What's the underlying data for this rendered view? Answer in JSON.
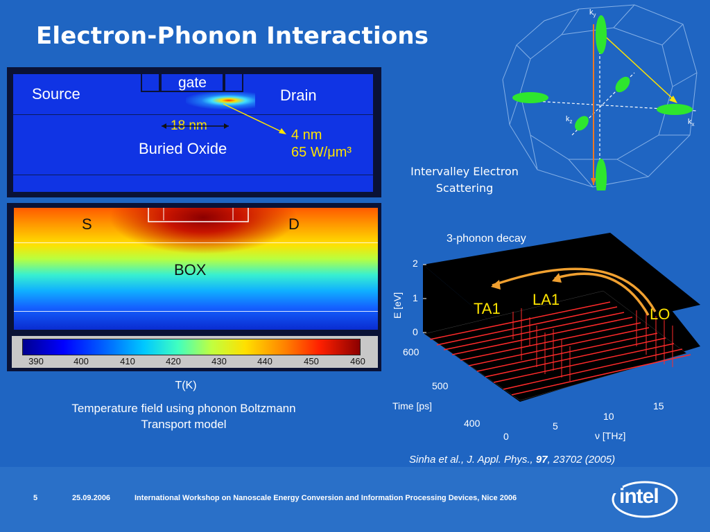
{
  "slide": {
    "title": "Electron-Phonon Interactions"
  },
  "device": {
    "gate_label": "gate",
    "source_label": "Source",
    "drain_label": "Drain",
    "length_label": "18 nm",
    "oxide_label": "Buried Oxide",
    "hotspot_size": "4 nm",
    "hotspot_power": "65 W/μm³"
  },
  "temperature": {
    "s_label": "S",
    "d_label": "D",
    "box_label": "BOX",
    "colorbar_ticks": [
      "390",
      "400",
      "410",
      "420",
      "430",
      "440",
      "450",
      "460"
    ],
    "unit_label": "T(K)",
    "caption_line1": "Temperature field using phonon Boltzmann",
    "caption_line2": "Transport model"
  },
  "brillouin": {
    "ky_label": "k",
    "ky_sub": "y",
    "kz_label": "k",
    "kz_sub": "z",
    "kx_label": "k",
    "kx_sub": "x",
    "caption_line1": "Intervalley Electron",
    "caption_line2": "Scattering"
  },
  "phonon_plot": {
    "title": "3-phonon decay",
    "e_axis_label": "E [eV]",
    "e_ticks": [
      "2",
      "1",
      "0"
    ],
    "time_axis_label": "Time [ps]",
    "time_ticks": [
      "600",
      "500",
      "400"
    ],
    "freq_axis_label": "ν [THz]",
    "freq_ticks": [
      "0",
      "5",
      "10",
      "15"
    ],
    "ta1_label": "TA1",
    "la1_label": "LA1",
    "lo_label": "LO"
  },
  "citation": {
    "prefix": "Sinha et al., J. Appl. Phys., ",
    "volume": "97",
    "suffix": ", 23702 (2005)"
  },
  "footer": {
    "page_number": "5",
    "date": "25.09.2006",
    "event": "International Workshop on Nanoscale Energy Conversion and Information Processing Devices, Nice 2006",
    "logo_text": "intel"
  },
  "colors": {
    "background": "#1f65c2",
    "accent_yellow": "#ffe400",
    "arrow_orange": "#f0a030",
    "valley_green": "#2ee62e"
  }
}
